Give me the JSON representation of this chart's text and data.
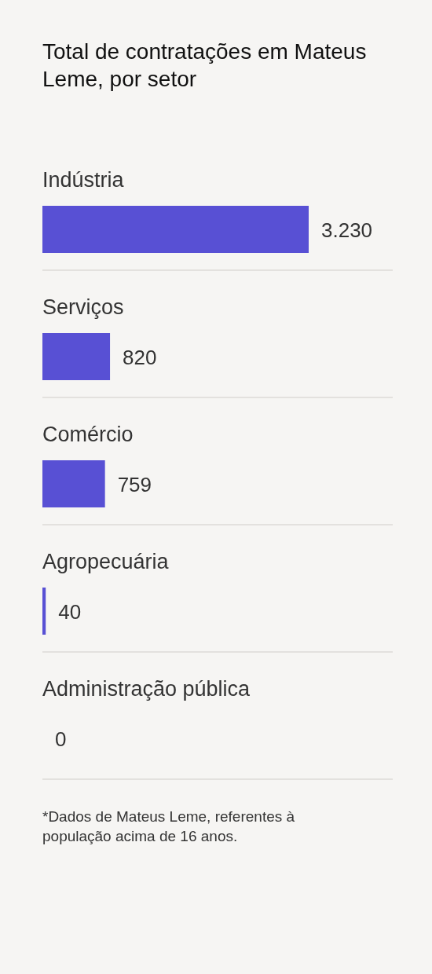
{
  "chart_data": {
    "type": "bar",
    "orientation": "horizontal",
    "title": "Total de contratações em Mateus Leme, por setor",
    "categories": [
      "Indústria",
      "Serviços",
      "Comércio",
      "Agropecuária",
      "Administração pública"
    ],
    "values": [
      3230,
      820,
      759,
      40,
      0
    ],
    "color": "#5850d4",
    "value_labels": [
      "3.230",
      "820",
      "759",
      "40",
      "0"
    ],
    "grid": "y",
    "annotations": [
      "*Dados de Mateus Leme, referentes à população acima de 16 anos."
    ]
  }
}
